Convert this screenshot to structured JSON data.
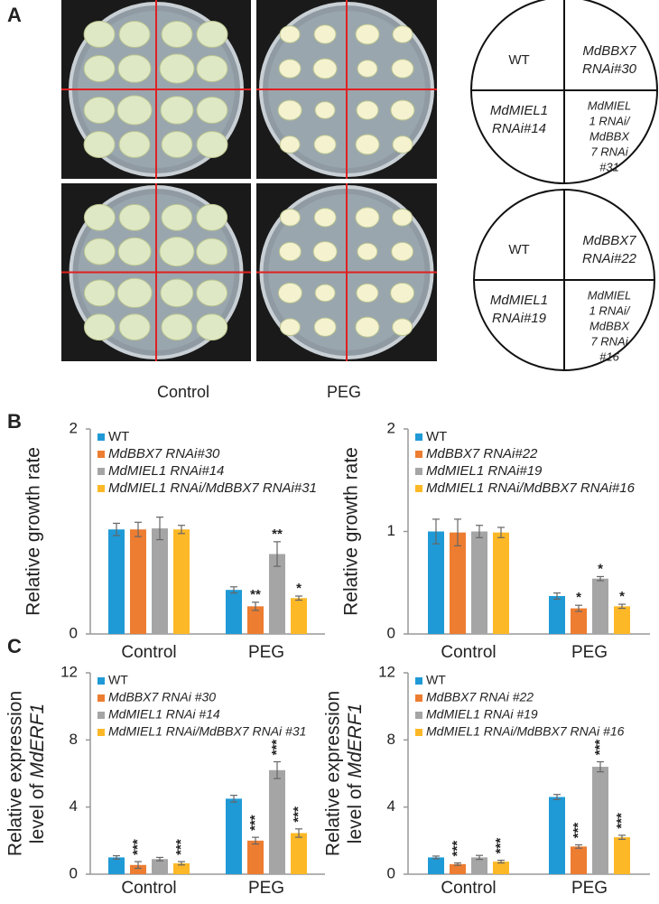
{
  "panel_labels": [
    "A",
    "B",
    "C"
  ],
  "panel_a": {
    "photo_labels": [
      "Control",
      "PEG"
    ],
    "diagrams": [
      {
        "quadrants": [
          [
            "WT"
          ],
          [
            "MdBBX7",
            "RNAi#30"
          ],
          [
            "MdMIEL1",
            "RNAi#14"
          ],
          [
            "MdMIEL",
            "1 RNAi/",
            "MdBBX",
            "7  RNAi",
            "#31"
          ]
        ]
      },
      {
        "quadrants": [
          [
            "WT"
          ],
          [
            "MdBBX7",
            "RNAi#22"
          ],
          [
            "MdMIEL1",
            "RNAi#19"
          ],
          [
            "MdMIEL",
            "1 RNAi/",
            "MdBBX",
            "7  RNAi",
            "#16"
          ]
        ]
      }
    ]
  },
  "chart_data": [
    {
      "type": "bar",
      "ylabel": {
        "line1": "Relative growth rate"
      },
      "categories": [
        "Control",
        "PEG"
      ],
      "ylim": [
        0,
        2
      ],
      "yticks": [
        0,
        2
      ],
      "significance_vertical": false,
      "series": [
        {
          "name": "WT",
          "color": "#1f9ad6",
          "values": [
            1.02,
            0.43
          ],
          "errors": [
            0.06,
            0.03
          ],
          "significance": [
            null,
            null
          ]
        },
        {
          "name": "MdBBX7 RNAi#30",
          "color": "#ed7d31",
          "values": [
            1.02,
            0.27
          ],
          "errors": [
            0.07,
            0.04
          ],
          "significance": [
            null,
            "**"
          ]
        },
        {
          "name": "MdMIEL1 RNAi#14",
          "color": "#a5a5a5",
          "values": [
            1.03,
            0.78
          ],
          "errors": [
            0.11,
            0.12
          ],
          "significance": [
            null,
            "**"
          ]
        },
        {
          "name": "MdMIEL1 RNAi/MdBBX7 RNAi#31",
          "color": "#fdb827",
          "values": [
            1.02,
            0.35
          ],
          "errors": [
            0.04,
            0.02
          ],
          "significance": [
            null,
            "*"
          ]
        }
      ]
    },
    {
      "type": "bar",
      "ylabel": {
        "line1": "Relative growth rate"
      },
      "categories": [
        "Control",
        "PEG"
      ],
      "ylim": [
        0,
        2
      ],
      "yticks": [
        0,
        1,
        2
      ],
      "significance_vertical": false,
      "series": [
        {
          "name": "WT",
          "color": "#1f9ad6",
          "values": [
            1.0,
            0.37
          ],
          "errors": [
            0.12,
            0.03
          ],
          "significance": [
            null,
            null
          ]
        },
        {
          "name": "MdBBX7 RNAi#22",
          "color": "#ed7d31",
          "values": [
            0.99,
            0.25
          ],
          "errors": [
            0.13,
            0.03
          ],
          "significance": [
            null,
            "*"
          ]
        },
        {
          "name": "MdMIEL1 RNAi#19",
          "color": "#a5a5a5",
          "values": [
            1.0,
            0.54
          ],
          "errors": [
            0.06,
            0.02
          ],
          "significance": [
            null,
            "*"
          ]
        },
        {
          "name": "MdMIEL1 RNAi/MdBBX7 RNAi#16",
          "color": "#fdb827",
          "values": [
            0.99,
            0.27
          ],
          "errors": [
            0.05,
            0.02
          ],
          "significance": [
            null,
            "*"
          ]
        }
      ]
    },
    {
      "type": "bar",
      "ylabel": {
        "line1": "Relative expression",
        "line2": "level of",
        "gene": "MdERF1"
      },
      "categories": [
        "Control",
        "PEG"
      ],
      "ylim": [
        0,
        12
      ],
      "yticks": [
        0,
        4,
        8,
        12
      ],
      "significance_vertical": true,
      "series": [
        {
          "name": "WT",
          "color": "#1f9ad6",
          "values": [
            1.0,
            4.5
          ],
          "errors": [
            0.1,
            0.2
          ],
          "significance": [
            null,
            null
          ]
        },
        {
          "name": "MdBBX7 RNAi #30",
          "color": "#ed7d31",
          "values": [
            0.55,
            2.0
          ],
          "errors": [
            0.2,
            0.2
          ],
          "significance": [
            "***",
            "***"
          ]
        },
        {
          "name": "MdMIEL1 RNAi #14",
          "color": "#a5a5a5",
          "values": [
            0.9,
            6.2
          ],
          "errors": [
            0.1,
            0.5
          ],
          "significance": [
            null,
            "***"
          ]
        },
        {
          "name": "MdMIEL1 RNAi/MdBBX7 RNAi #31",
          "color": "#fdb827",
          "values": [
            0.65,
            2.45
          ],
          "errors": [
            0.1,
            0.25
          ],
          "significance": [
            "***",
            "***"
          ]
        }
      ]
    },
    {
      "type": "bar",
      "ylabel": {
        "line1": "Relative expression",
        "line2": "level of",
        "gene": "MdERF1"
      },
      "categories": [
        "Control",
        "PEG"
      ],
      "ylim": [
        0,
        12
      ],
      "yticks": [
        0,
        4,
        8,
        12
      ],
      "significance_vertical": true,
      "series": [
        {
          "name": "WT",
          "color": "#1f9ad6",
          "values": [
            1.0,
            4.6
          ],
          "errors": [
            0.08,
            0.15
          ],
          "significance": [
            null,
            null
          ]
        },
        {
          "name": "MdBBX7 RNAi #22",
          "color": "#ed7d31",
          "values": [
            0.6,
            1.65
          ],
          "errors": [
            0.07,
            0.1
          ],
          "significance": [
            "***",
            "***"
          ]
        },
        {
          "name": "MdMIEL1 RNAi #19",
          "color": "#a5a5a5",
          "values": [
            1.0,
            6.4
          ],
          "errors": [
            0.12,
            0.3
          ],
          "significance": [
            null,
            "***"
          ]
        },
        {
          "name": "MdMIEL1 RNAi/MdBBX7 RNAi #16",
          "color": "#fdb827",
          "values": [
            0.75,
            2.2
          ],
          "errors": [
            0.08,
            0.12
          ],
          "significance": [
            "***",
            "***"
          ]
        }
      ]
    }
  ]
}
